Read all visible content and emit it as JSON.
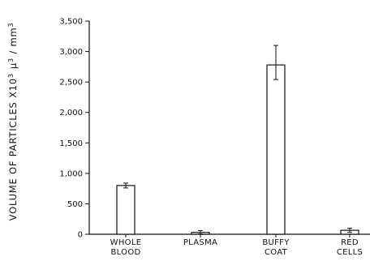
{
  "chart_data": {
    "type": "bar",
    "categories": [
      [
        "WHOLE",
        "BLOOD"
      ],
      [
        "PLASMA"
      ],
      [
        "BUFFY",
        "COAT"
      ],
      [
        "RED",
        "CELLS"
      ]
    ],
    "values": [
      800,
      30,
      2780,
      65
    ],
    "error_bars": [
      [
        760,
        840
      ],
      [
        5,
        60
      ],
      [
        2540,
        3100
      ],
      [
        30,
        100
      ]
    ],
    "ylabel": "VOLUME OF PARTICLES X10",
    "ylabel_sup": "3",
    "ylabel_unit_mu": "μ",
    "ylabel_unit_sup": "3",
    "ylabel_unit_rest": " / mm",
    "ylabel_unit_sup2": "3",
    "ylim": [
      0,
      3500
    ],
    "yticks": [
      0,
      500,
      1000,
      1500,
      2000,
      2500,
      3000,
      3500
    ],
    "ytick_labels": [
      "0",
      "500",
      "1,000",
      "1,500",
      "2,000",
      "2,500",
      "3,000",
      "3,500"
    ],
    "grid": false,
    "colors": {
      "bar_fill": "#ffffff",
      "stroke": "#111111"
    }
  }
}
